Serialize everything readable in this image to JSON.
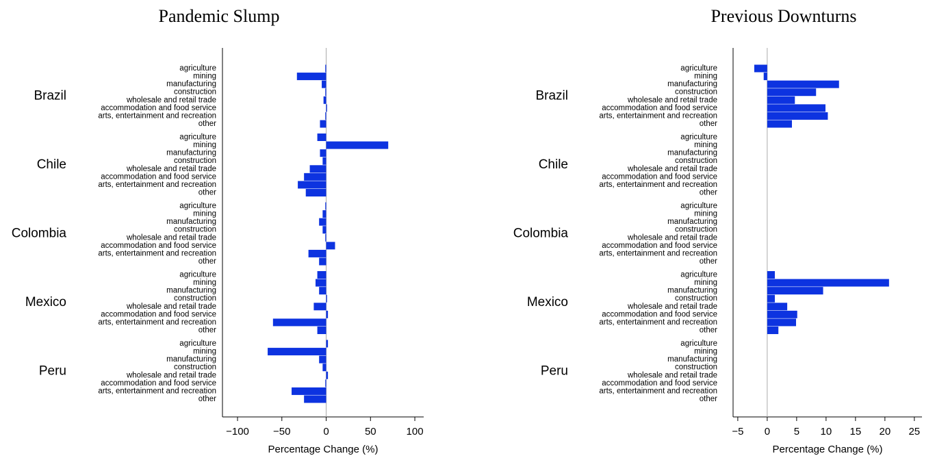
{
  "chart_data": [
    {
      "type": "bar",
      "orientation": "horizontal",
      "title": "Pandemic Slump",
      "xlabel": "Percentage Change (%)",
      "categories": [
        "agriculture",
        "mining",
        "manufacturing",
        "construction",
        "wholesale and retail trade",
        "accommodation and food service",
        "arts, entertainment and recreation",
        "other"
      ],
      "color": "#0d33e0",
      "series": [
        {
          "name": "Brazil",
          "values": [
            -1,
            -33,
            -5,
            -1,
            -3,
            1,
            -1,
            -7
          ]
        },
        {
          "name": "Chile",
          "values": [
            -10,
            70,
            -7,
            -4,
            -18.5,
            -25,
            -32,
            -23
          ]
        },
        {
          "name": "Colombia",
          "values": [
            -1,
            -4,
            -8,
            -4,
            -1,
            10,
            -20,
            -8
          ]
        },
        {
          "name": "Mexico",
          "values": [
            -10,
            -12,
            -8,
            1,
            -14,
            2,
            -60,
            -10
          ]
        },
        {
          "name": "Peru",
          "values": [
            2,
            -66,
            -8,
            -4,
            2,
            -1,
            -39,
            -25
          ]
        }
      ],
      "xlim": [
        -117,
        110
      ],
      "xticks": [
        {
          "value": -100,
          "label": "−100"
        },
        {
          "value": -50,
          "label": "−50"
        },
        0,
        50,
        100
      ]
    },
    {
      "type": "bar",
      "orientation": "horizontal",
      "title": "Previous Downturns",
      "xlabel": "Percentage Change (%)",
      "categories": [
        "agriculture",
        "mining",
        "manufacturing",
        "construction",
        "wholesale and retail trade",
        "accommodation and food service",
        "arts, entertainment and recreation",
        "other"
      ],
      "color": "#0d33e0",
      "series": [
        {
          "name": "Brazil",
          "values": [
            -2.2,
            -0.6,
            12.2,
            8.3,
            4.7,
            9.9,
            10.3,
            4.2
          ]
        },
        {
          "name": "Chile",
          "values": [
            null,
            null,
            null,
            null,
            null,
            null,
            null,
            null
          ]
        },
        {
          "name": "Colombia",
          "values": [
            null,
            null,
            null,
            null,
            null,
            null,
            null,
            null
          ]
        },
        {
          "name": "Mexico",
          "values": [
            1.3,
            20.7,
            9.5,
            1.3,
            3.4,
            5.1,
            4.9,
            1.9
          ]
        },
        {
          "name": "Peru",
          "values": [
            null,
            null,
            null,
            null,
            null,
            null,
            null,
            null
          ]
        }
      ],
      "xlim": [
        -5.8,
        26.3
      ],
      "xticks": [
        {
          "value": -5,
          "label": "−5"
        },
        0,
        5,
        10,
        15,
        20,
        25
      ]
    }
  ]
}
